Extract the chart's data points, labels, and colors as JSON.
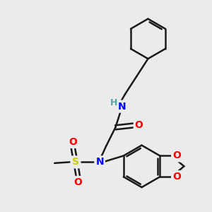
{
  "background_color": "#ebebeb",
  "bond_color": "#1a1a1a",
  "bond_width": 1.8,
  "N_color": "#0000ff",
  "O_color": "#ff0000",
  "S_color": "#cccc00",
  "H_color": "#4fa8a8",
  "C_color": "#1a1a1a",
  "font_size": 10,
  "figsize": [
    3.0,
    3.0
  ],
  "dpi": 100,
  "xlim": [
    0,
    10
  ],
  "ylim": [
    0,
    10
  ]
}
